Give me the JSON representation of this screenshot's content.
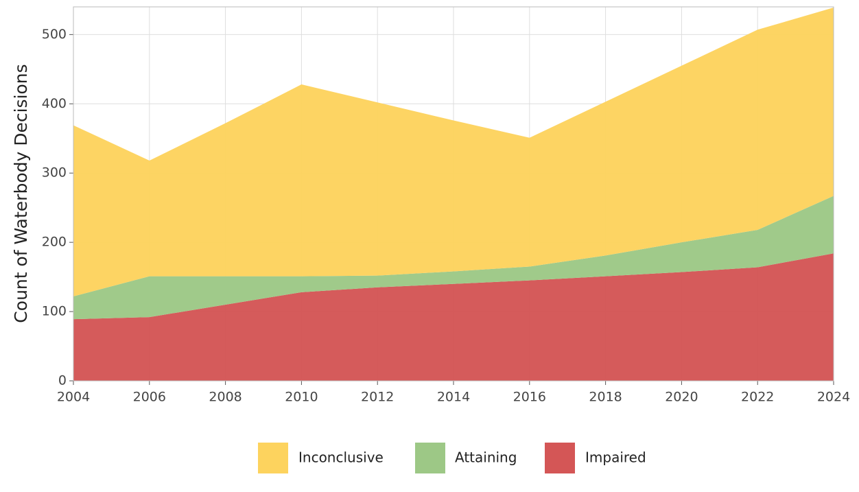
{
  "chart_data": {
    "type": "stacked_area",
    "y_label": "Count of Waterbody Decisions",
    "x": [
      2004,
      2006,
      2008,
      2010,
      2012,
      2014,
      2016,
      2018,
      2020,
      2022,
      2024
    ],
    "series": [
      {
        "name": "Impaired",
        "color": "#d45656",
        "values": [
          89,
          92,
          110,
          128,
          135,
          140,
          145,
          151,
          157,
          164,
          184
        ]
      },
      {
        "name": "Attaining",
        "color": "#9dc886",
        "values": [
          33,
          59,
          41,
          23,
          17,
          18,
          20,
          30,
          43,
          54,
          83
        ]
      },
      {
        "name": "Inconclusive",
        "color": "#fdd35e",
        "values": [
          247,
          167,
          221,
          277,
          250,
          218,
          186,
          222,
          255,
          289,
          272
        ]
      }
    ],
    "xlim": [
      2004,
      2024
    ],
    "xticks": [
      2004,
      2006,
      2008,
      2010,
      2012,
      2014,
      2016,
      2018,
      2020,
      2022,
      2024
    ],
    "ylim": [
      0,
      540
    ],
    "yticks": [
      0,
      100,
      200,
      300,
      400,
      500
    ],
    "grid": true,
    "legend": "bottom"
  }
}
